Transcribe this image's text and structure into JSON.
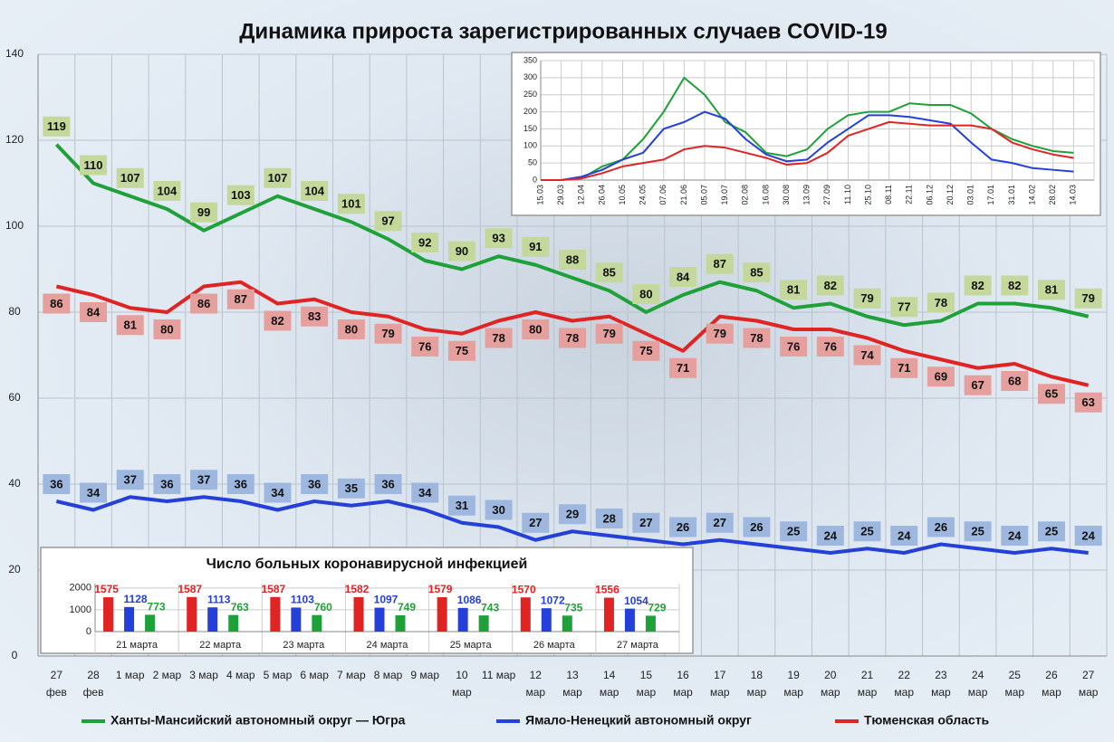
{
  "chart_data": [
    {
      "type": "line",
      "title": "Динамика прироста зарегистрированных случаев COVID-19",
      "categories": [
        "27 фев",
        "28 фев",
        "1 мар",
        "2 мар",
        "3 мар",
        "4 мар",
        "5 мар",
        "6 мар",
        "7 мар",
        "8 мар",
        "9 мар",
        "10 мар",
        "11 мар",
        "12 мар",
        "13 мар",
        "14 мар",
        "15 мар",
        "16 мар",
        "17 мар",
        "18 мар",
        "19 мар",
        "20 мар",
        "21 мар",
        "22 мар",
        "23 мар",
        "24 мар",
        "25 мар",
        "26 мар",
        "27 мар"
      ],
      "series": [
        {
          "name": "Ханты-Мансийский автономный округ — Югра",
          "color": "#1fa13a",
          "values": [
            119,
            110,
            107,
            104,
            99,
            103,
            107,
            104,
            101,
            97,
            92,
            90,
            93,
            91,
            88,
            85,
            80,
            84,
            87,
            85,
            81,
            82,
            79,
            77,
            78,
            82,
            82,
            81,
            79
          ]
        },
        {
          "name": "Ямало-Ненецкий автономный округ",
          "color": "#2440d8",
          "values": [
            36,
            34,
            37,
            36,
            37,
            36,
            34,
            36,
            35,
            36,
            34,
            31,
            30,
            27,
            29,
            28,
            27,
            26,
            27,
            26,
            25,
            24,
            25,
            24,
            26,
            25,
            24,
            25,
            24
          ]
        },
        {
          "name": "Тюменская область",
          "color": "#e02424",
          "values": [
            86,
            84,
            81,
            80,
            86,
            87,
            82,
            83,
            80,
            79,
            76,
            75,
            78,
            80,
            78,
            79,
            75,
            71,
            79,
            78,
            76,
            76,
            74,
            71,
            69,
            67,
            68,
            65,
            63
          ]
        }
      ],
      "ylim": [
        0,
        140
      ],
      "yticks": [
        0,
        20,
        40,
        60,
        80,
        100,
        120,
        140
      ],
      "grid": true,
      "legend": "bottom"
    },
    {
      "type": "line",
      "categories": [
        "15.03",
        "29.03",
        "12.04",
        "26.04",
        "10.05",
        "24.05",
        "07.06",
        "21.06",
        "05.07",
        "19.07",
        "02.08",
        "16.08",
        "30.08",
        "13.09",
        "27.09",
        "11.10",
        "25.10",
        "08.11",
        "22.11",
        "06.12",
        "20.12",
        "03.01",
        "17.01",
        "31.01",
        "14.02",
        "28.02",
        "14.03"
      ],
      "series": [
        {
          "color": "#1fa13a",
          "values": [
            0,
            0,
            5,
            40,
            60,
            120,
            200,
            300,
            250,
            170,
            140,
            80,
            70,
            90,
            150,
            190,
            200,
            200,
            225,
            220,
            220,
            195,
            150,
            120,
            100,
            85,
            80
          ]
        },
        {
          "color": "#2440d8",
          "values": [
            0,
            0,
            10,
            30,
            60,
            80,
            150,
            170,
            200,
            180,
            120,
            75,
            55,
            60,
            110,
            150,
            190,
            190,
            185,
            175,
            165,
            110,
            60,
            50,
            35,
            30,
            25
          ]
        },
        {
          "color": "#e02424",
          "values": [
            0,
            0,
            5,
            20,
            40,
            50,
            60,
            90,
            100,
            95,
            80,
            65,
            45,
            50,
            80,
            130,
            150,
            170,
            165,
            160,
            160,
            160,
            150,
            110,
            90,
            75,
            65
          ]
        }
      ],
      "ylim": [
        0,
        350
      ],
      "yticks": [
        0,
        50,
        100,
        150,
        200,
        250,
        300,
        350
      ],
      "grid": true
    },
    {
      "type": "bar",
      "title": "Число больных  коронавирусной  инфекцией",
      "categories": [
        "21 марта",
        "22 марта",
        "23 марта",
        "24 марта",
        "25 марта",
        "26 марта",
        "27 марта"
      ],
      "series": [
        {
          "color": "#e02424",
          "values": [
            1575,
            1587,
            1587,
            1582,
            1579,
            1570,
            1556
          ]
        },
        {
          "color": "#2440d8",
          "values": [
            1128,
            1113,
            1103,
            1097,
            1086,
            1072,
            1054
          ]
        },
        {
          "color": "#1fa13a",
          "values": [
            773,
            763,
            760,
            749,
            743,
            735,
            729
          ]
        }
      ],
      "ylim": [
        0,
        2200
      ],
      "yticks": [
        0,
        1000,
        2000
      ],
      "grid": true
    }
  ]
}
